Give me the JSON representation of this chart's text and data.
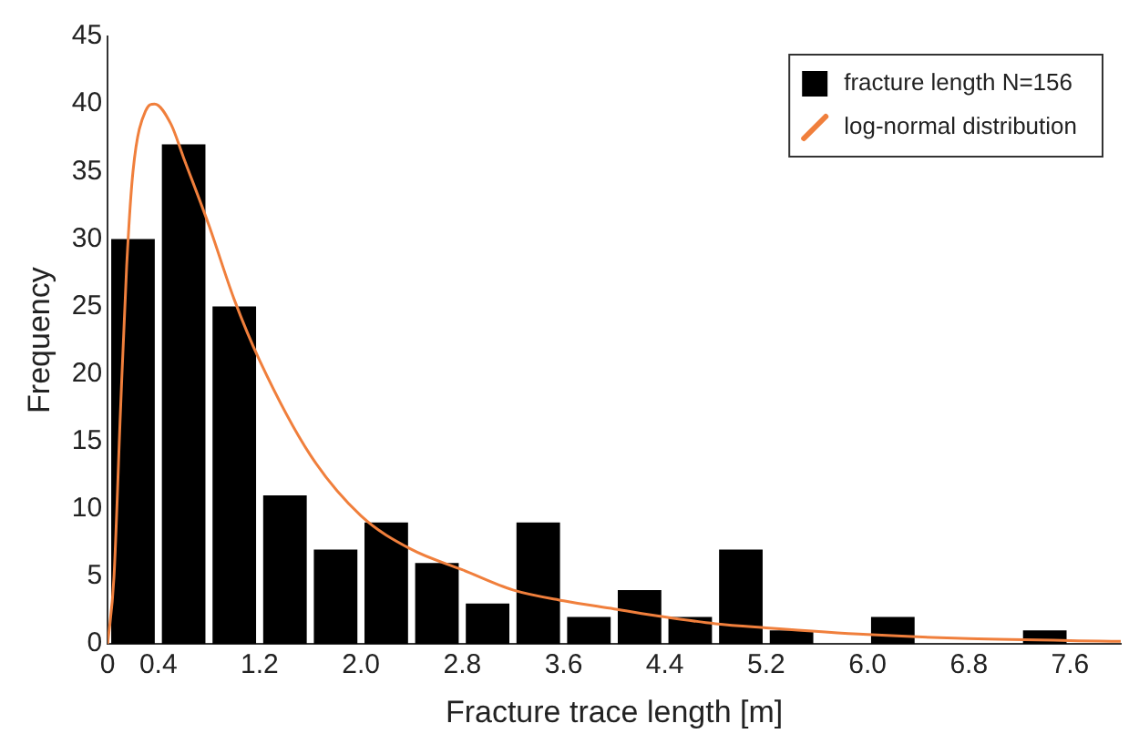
{
  "chart_data": {
    "type": "histogram",
    "xlabel": "Fracture trace length [m]",
    "ylabel": "Frequency",
    "bins": [
      0,
      0.4,
      0.8,
      1.2,
      1.6,
      2.0,
      2.4,
      2.8,
      3.2,
      3.6,
      4.0,
      4.4,
      4.8,
      5.2,
      5.6,
      6.0,
      6.4,
      6.8,
      7.2,
      7.6
    ],
    "series": [
      {
        "name": "fracture length N=156",
        "color": "#000000",
        "values": [
          30,
          37,
          25,
          11,
          7,
          9,
          6,
          3,
          9,
          2,
          4,
          2,
          7,
          1,
          0,
          2,
          0,
          0,
          1
        ]
      },
      {
        "type": "line",
        "name": "log-normal distribution",
        "color": "#f07f3c",
        "marker": "none",
        "line_style": "solid",
        "x": [
          0,
          0.05,
          0.1,
          0.15,
          0.2,
          0.3,
          0.37,
          0.5,
          0.6,
          0.8,
          1.0,
          1.2,
          1.6,
          2.0,
          2.4,
          2.8,
          3.2,
          3.6,
          4.0,
          4.4,
          4.8,
          5.2,
          6.0,
          6.8,
          8.0
        ],
        "values": [
          0,
          5,
          17,
          28,
          35,
          39.5,
          40,
          38.5,
          36,
          31,
          25.5,
          21,
          14,
          9.5,
          7,
          5.5,
          4,
          3.2,
          2.6,
          2,
          1.5,
          1.2,
          0.7,
          0.4,
          0.2
        ]
      }
    ],
    "xlim": [
      0,
      8
    ],
    "xticks": [
      0,
      0.4,
      1.2,
      {
        "value": 2,
        "label": "2.0"
      },
      2.8,
      3.6,
      4.4,
      5.2,
      {
        "value": 6,
        "label": "6.0"
      },
      6.8,
      7.6
    ],
    "ylim": [
      0,
      45
    ],
    "yticks": [
      0,
      5,
      10,
      15,
      20,
      25,
      30,
      35,
      40,
      45
    ],
    "legend": "top right"
  }
}
